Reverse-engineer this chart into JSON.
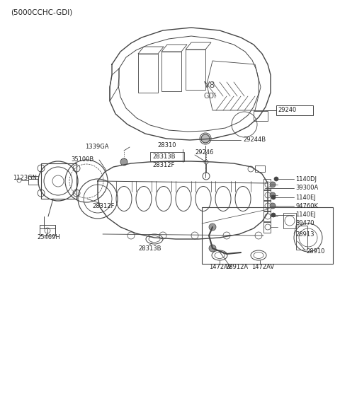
{
  "title": "(5000CCHC-GDI)",
  "bg": "#ffffff",
  "lc": "#444444",
  "tc": "#222222",
  "fs": 6.0,
  "cover_label": "29240",
  "parts": {
    "cover": "29240",
    "grommet": "29244B",
    "manifold_top": "28310",
    "gasket_box": "28313B",
    "gasket_f": "28312F",
    "sensor_top": "29246",
    "bolt1": "1140DJ",
    "sensor2": "39300A",
    "bolt2": "1140EJ",
    "sensor3": "94760K",
    "bolt3": "1140EJ",
    "sensor4": "39470",
    "valve1": "28913",
    "hose": "28912A",
    "canister": "28910",
    "gasket1": "1472AV",
    "gasket2": "1472AV",
    "bolt_tb": "1339GA",
    "tb": "35100B",
    "clamp": "1123GN",
    "gasket_tb": "28312F",
    "gasket_tb2": "28313B",
    "sensor_tb": "25469H"
  }
}
